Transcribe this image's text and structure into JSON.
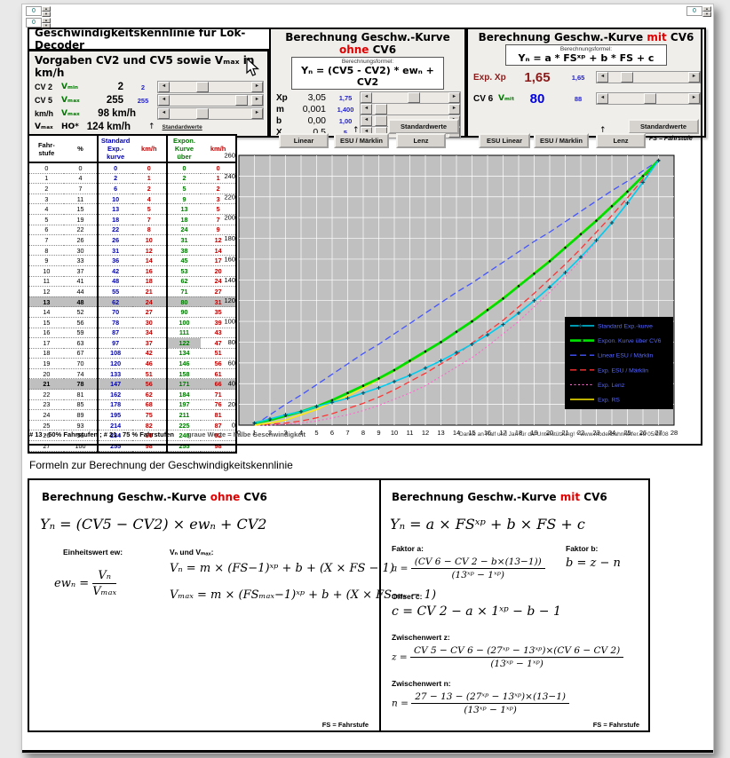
{
  "window": {
    "title": "Geschwindigkeitskennlinie für Lok-Decoder"
  },
  "icons": {
    "left": "◄",
    "right": "►",
    "up": "↑",
    "spin_up": "▲",
    "spin_down": "▼"
  },
  "misc": {
    "spinner1": "0",
    "spinner2": "0",
    "spinner3": "0"
  },
  "vorgaben": {
    "heading": "Vorgaben CV2 und CV5 sowie Vₘₐₓ in km/h",
    "rows": [
      {
        "l1": "CV 2",
        "l2": "Vₘᵢₙ",
        "value": "2",
        "std": "2",
        "pos": 0.38
      },
      {
        "l1": "CV 5",
        "l2": "Vₘₐₓ",
        "value": "255",
        "std": "255",
        "pos": 0.95
      },
      {
        "l1": "km/h",
        "l2": "Vₘₐₓ",
        "value": "98 km/h",
        "std": "",
        "pos": 0.38
      },
      {
        "l1": "Vₘₐₓ",
        "l2": "HO*",
        "value": "124 km/h"
      }
    ],
    "std_note": "Standardwerte",
    "footnote": "* für H0 angepasst in Anlehnung an NEM 661"
  },
  "ohne": {
    "title_pre": "Berechnung Geschw.-Kurve ",
    "title_hl": "ohne",
    "title_post": " CV6",
    "formula_label": "Berechnungsformel:",
    "formula": "Yₙ = (CV5 - CV2) * ewₙ + CV2",
    "rows": [
      {
        "label": "Xp",
        "value": "3,05",
        "std": "1,75",
        "pos": 0.55
      },
      {
        "label": "m",
        "value": "0,001",
        "std": "1,400",
        "pos": 0.04
      },
      {
        "label": "b",
        "value": "0,00",
        "std": "1,00",
        "pos": 0.04
      },
      {
        "label": "X",
        "value": "0,5",
        "std": "5",
        "pos": 0.04
      }
    ],
    "std_button": "Standardwerte"
  },
  "mit": {
    "title_pre": "Berechnung Geschw.-Kurve ",
    "title_hl": "mit",
    "title_post": " CV6",
    "formula_label": "Berechnungsformel:",
    "formula": "Yₙ = a * FSˣᵖ + b * FS + c",
    "rows": [
      {
        "label": "Exp. Xp",
        "label2": "",
        "value": "1,65",
        "std": "1,65",
        "pos": 0.18
      },
      {
        "label": "CV 6",
        "label2": "Vₘᵢₜ",
        "value": "80",
        "std": "88",
        "pos": 0.52
      }
    ],
    "std_button": "Standardwerte"
  },
  "tabs": {
    "ohne": [
      "Linear",
      "ESU / Märklin",
      "Lenz"
    ],
    "mit": [
      "ESU Linear",
      "ESU / Märklin",
      "Lenz"
    ],
    "fs_note": "FS = Fahrstufe"
  },
  "table": {
    "headers": [
      "Fahr-\nstufe",
      "%",
      "Standard\nExp.-kurve",
      "km/h",
      "Expon.\nKurve über",
      "km/h"
    ],
    "rows": [
      [
        0,
        0,
        0,
        0,
        0,
        0
      ],
      [
        1,
        4,
        2,
        1,
        2,
        1
      ],
      [
        2,
        7,
        6,
        2,
        5,
        2
      ],
      [
        3,
        11,
        10,
        4,
        9,
        3
      ],
      [
        4,
        15,
        13,
        5,
        13,
        5
      ],
      [
        5,
        19,
        18,
        7,
        18,
        7
      ],
      [
        6,
        22,
        22,
        8,
        24,
        9
      ],
      [
        7,
        26,
        26,
        10,
        31,
        12
      ],
      [
        8,
        30,
        31,
        12,
        38,
        14
      ],
      [
        9,
        33,
        36,
        14,
        45,
        17
      ],
      [
        10,
        37,
        42,
        16,
        53,
        20
      ],
      [
        11,
        41,
        48,
        18,
        62,
        24
      ],
      [
        12,
        44,
        55,
        21,
        71,
        27
      ],
      [
        13,
        48,
        62,
        24,
        80,
        31
      ],
      [
        14,
        52,
        70,
        27,
        90,
        35
      ],
      [
        15,
        56,
        78,
        30,
        100,
        39
      ],
      [
        16,
        59,
        87,
        34,
        111,
        43
      ],
      [
        17,
        63,
        97,
        37,
        122,
        47
      ],
      [
        18,
        67,
        108,
        42,
        134,
        51
      ],
      [
        19,
        70,
        120,
        46,
        146,
        56
      ],
      [
        20,
        74,
        133,
        51,
        158,
        61
      ],
      [
        21,
        78,
        147,
        56,
        171,
        66
      ],
      [
        22,
        81,
        162,
        62,
        184,
        71
      ],
      [
        23,
        85,
        178,
        68,
        197,
        76
      ],
      [
        24,
        89,
        195,
        75,
        211,
        81
      ],
      [
        25,
        93,
        214,
        82,
        225,
        87
      ],
      [
        26,
        96,
        234,
        90,
        240,
        92
      ],
      [
        27,
        100,
        255,
        98,
        255,
        98
      ]
    ],
    "highlight_rows": [
      13,
      21
    ],
    "highlight_cell": {
      "row": 17,
      "col": 4
    },
    "footnote_left": "# 13 - 50% Fahrstufen ;  # 21 - 75 % Fahrstufen",
    "footnote_mid": "graue Werte = halbe Geschwindigkeit",
    "footnote_right": "Danke an Ralf und Jan für die Unterstützung!  * www.modellbahnhelfer.eu 05/2008"
  },
  "chart_data": {
    "type": "line",
    "x_label": "Fahrstufe",
    "y_label": "",
    "x": [
      1,
      2,
      3,
      4,
      5,
      6,
      7,
      8,
      9,
      10,
      11,
      12,
      13,
      14,
      15,
      16,
      17,
      18,
      19,
      20,
      21,
      22,
      23,
      24,
      25,
      26,
      27
    ],
    "xlim": [
      0,
      28
    ],
    "ylim": [
      0,
      260
    ],
    "x_tick_step": 1,
    "y_tick_step": 20,
    "grid": true,
    "plot_bg": "#c0c0c0",
    "legend_position": "right-bottom",
    "legend_bg": "#000000",
    "series": [
      {
        "name": "Standard   Exp.-kurve",
        "color": "#00ccee",
        "style": "solid-marker",
        "values": [
          2,
          6,
          10,
          13,
          18,
          22,
          26,
          31,
          36,
          42,
          48,
          55,
          62,
          70,
          78,
          87,
          97,
          108,
          120,
          133,
          147,
          162,
          178,
          195,
          214,
          234,
          255
        ]
      },
      {
        "name": "Expon. Kurve über CV6",
        "color": "#00dd00",
        "style": "thick-dot",
        "values": [
          2,
          5,
          9,
          13,
          18,
          24,
          31,
          38,
          45,
          53,
          62,
          71,
          80,
          90,
          100,
          111,
          122,
          134,
          146,
          158,
          171,
          184,
          197,
          211,
          225,
          240,
          255
        ]
      },
      {
        "name": "Linear ESU / Märklin",
        "color": "#4455ff",
        "style": "dash",
        "values": [
          0,
          10,
          20,
          29,
          39,
          49,
          59,
          69,
          78,
          88,
          98,
          108,
          118,
          128,
          137,
          147,
          157,
          167,
          177,
          186,
          196,
          206,
          216,
          226,
          235,
          245,
          255
        ]
      },
      {
        "name": "Exp. ESU / Märklin",
        "color": "#ff3333",
        "style": "dash",
        "values": [
          0,
          1,
          2,
          4,
          7,
          11,
          16,
          21,
          27,
          34,
          42,
          50,
          59,
          68,
          79,
          90,
          101,
          114,
          127,
          141,
          155,
          170,
          186,
          202,
          219,
          237,
          255
        ]
      },
      {
        "name": "Exp. Lenz",
        "color": "#ff66cc",
        "style": "dot",
        "values": [
          0,
          0,
          1,
          2,
          4,
          7,
          10,
          14,
          19,
          25,
          31,
          38,
          47,
          56,
          65,
          76,
          88,
          100,
          114,
          128,
          143,
          159,
          177,
          195,
          214,
          234,
          255
        ]
      },
      {
        "name": "Exp. RS",
        "color": "#ffee00",
        "style": "solid",
        "values": [
          0,
          2,
          5,
          10,
          15,
          22,
          28,
          36,
          44,
          52,
          61,
          70,
          80,
          90,
          101,
          112,
          123,
          135,
          147,
          159,
          172,
          185,
          198,
          212,
          226,
          240,
          255
        ]
      }
    ]
  },
  "formulas": {
    "heading": "Formeln zur Berechnung der Geschwindigkeitskennlinie",
    "left": {
      "title_pre": "Berechnung Geschw.-Kurve ",
      "title_hl": "ohne",
      "title_post": " CV6",
      "main": "Yₙ = (CV5 − CV2) × ewₙ + CV2",
      "ew_label": "Einheitswert ew:",
      "v_label": "Vₙ und Vₘₐₓ:",
      "ew_lhs": "ewₙ  =",
      "ew_num": "Vₙ",
      "ew_den": "Vₘₐₓ",
      "vn": "Vₙ = m × (FS−1)ˣᵖ + b + (X × FS − 1)",
      "vmax": "Vₘₐₓ = m × (FSₘₐₓ−1)ˣᵖ + b + (X × FSₘₐₓ − 1)",
      "fs_note": "FS = Fahrstufe"
    },
    "right": {
      "title_pre": "Berechnung Geschw.-Kurve ",
      "title_hl": "mit",
      "title_post": " CV6",
      "main": "Yₙ = a × FSˣᵖ + b × FS + c",
      "a_label": "Faktor a:",
      "a_lhs": "a  =",
      "a_num": "(CV 6 − CV 2 − b×(13−1))",
      "a_den": "(13ˣᵖ − 1ˣᵖ)",
      "b_label": "Faktor b:",
      "b_formula": "b  =  z  −  n",
      "c_label": "Offset c:",
      "c_formula": "c = CV 2 − a × 1ˣᵖ − b − 1",
      "z_label": "Zwischenwert z:",
      "z_lhs": "z  =",
      "z_num": "CV 5 − CV 6 − (27ˣᵖ − 13ˣᵖ)×(CV 6 − CV 2)",
      "z_den": "(13ˣᵖ − 1ˣᵖ)",
      "n_label": "Zwischenwert n:",
      "n_lhs": "n  =",
      "n_num": "27 − 13 − (27ˣᵖ − 13ˣᵖ)×(13−1)",
      "n_den": "(13ˣᵖ − 1ˣᵖ)",
      "fs_note": "FS = Fahrstufe"
    }
  }
}
